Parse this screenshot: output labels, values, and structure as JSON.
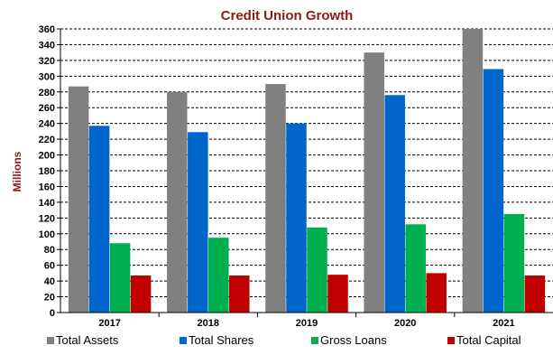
{
  "chart_data": {
    "type": "bar",
    "title": "Credit Union Growth",
    "ylabel": "Millions",
    "xlabel": "",
    "categories": [
      "2017",
      "2018",
      "2019",
      "2020",
      "2021"
    ],
    "series": [
      {
        "name": "Total Assets",
        "color": "#808080",
        "values": [
          287,
          280,
          290,
          330,
          360
        ]
      },
      {
        "name": "Total Shares",
        "color": "#0066cc",
        "values": [
          237,
          229,
          240,
          276,
          309
        ]
      },
      {
        "name": "Gross Loans",
        "color": "#00b050",
        "values": [
          88,
          95,
          108,
          112,
          125
        ]
      },
      {
        "name": "Total Capital",
        "color": "#c00000",
        "values": [
          47,
          47,
          48,
          50,
          47
        ]
      }
    ],
    "ylim": [
      0,
      360
    ],
    "ytick_step": 20,
    "grid": true,
    "legend_position": "bottom",
    "title_color": "#8b1a1a"
  }
}
